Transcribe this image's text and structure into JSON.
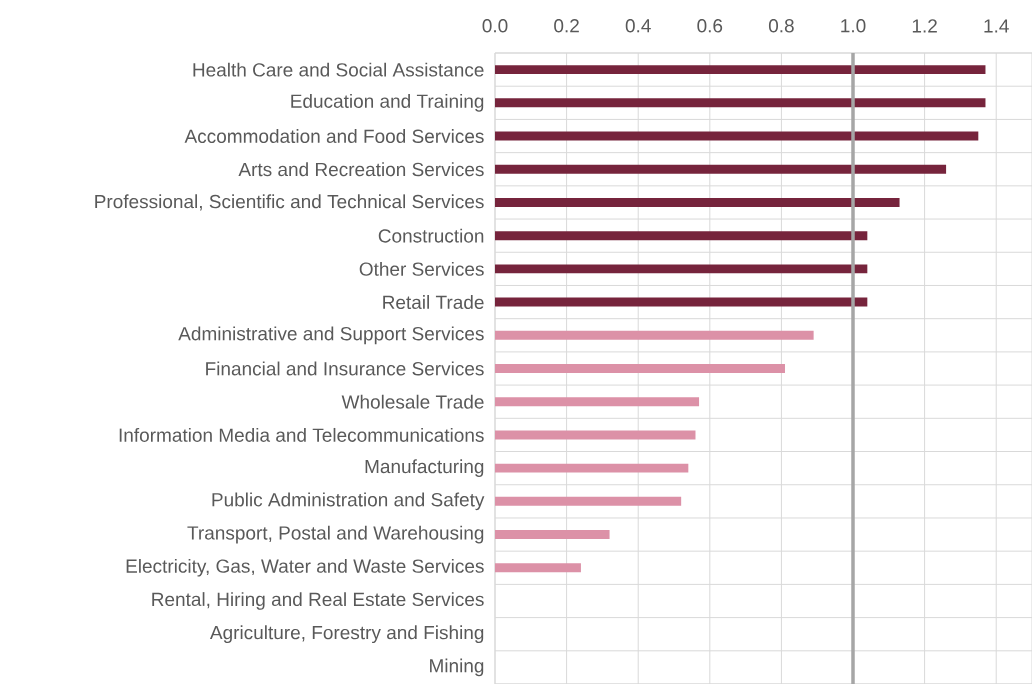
{
  "chart_data": {
    "type": "bar",
    "orientation": "horizontal",
    "categories": [
      "Health Care and Social Assistance",
      "Education and Training",
      "Accommodation and Food Services",
      "Arts and Recreation Services",
      "Professional, Scientific and Technical Services",
      "Construction",
      "Other Services",
      "Retail Trade",
      "Administrative and Support Services",
      "Financial and Insurance Services",
      "Wholesale Trade",
      "Information Media and Telecommunications",
      "Manufacturing",
      "Public Administration and Safety",
      "Transport, Postal and Warehousing",
      "Electricity, Gas, Water and Waste Services",
      "Rental, Hiring and Real Estate Services",
      "Agriculture, Forestry and Fishing",
      "Mining"
    ],
    "values": [
      1.37,
      1.37,
      1.35,
      1.26,
      1.13,
      1.04,
      1.04,
      1.04,
      0.89,
      0.81,
      0.57,
      0.56,
      0.54,
      0.52,
      0.32,
      0.24,
      0,
      0,
      0
    ],
    "colors": [
      "#76243c",
      "#76243c",
      "#76243c",
      "#76243c",
      "#76243c",
      "#76243c",
      "#76243c",
      "#76243c",
      "#dc91a7",
      "#dc91a7",
      "#dc91a7",
      "#dc91a7",
      "#dc91a7",
      "#dc91a7",
      "#dc91a7",
      "#dc91a7",
      "#dc91a7",
      "#dc91a7",
      "#dc91a7"
    ],
    "xlim": [
      0,
      1.5
    ],
    "xticks": [
      {
        "value": 0,
        "label": "0.0"
      },
      0.2,
      0.4,
      0.6,
      0.8,
      {
        "value": 1,
        "label": "1.0"
      },
      1.2,
      1.4
    ],
    "grid": true,
    "ref_lines": [
      {
        "axis": "x",
        "value": 1.0,
        "color": "#a6a6a6"
      }
    ]
  }
}
